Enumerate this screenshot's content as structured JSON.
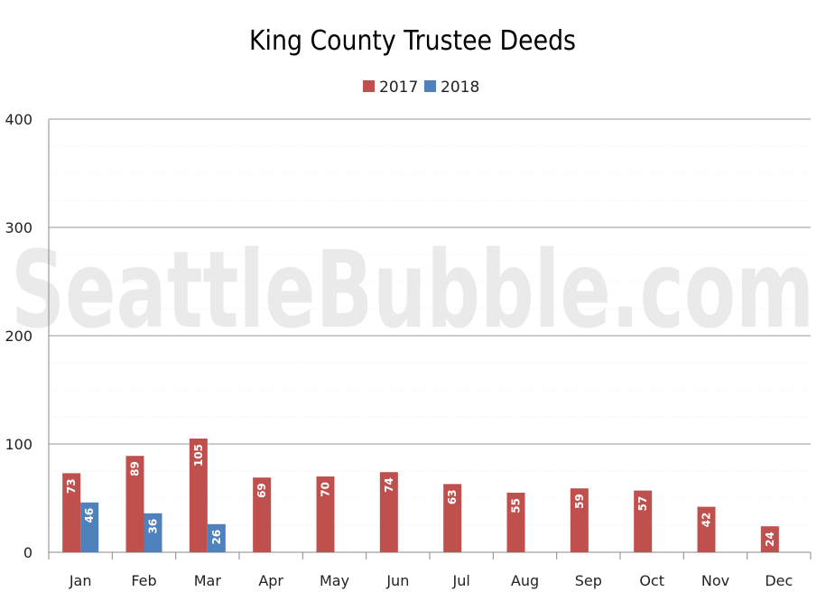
{
  "chart_data": {
    "type": "bar",
    "title": "King County Trustee Deeds",
    "categories": [
      "Jan",
      "Feb",
      "Mar",
      "Apr",
      "May",
      "Jun",
      "Jul",
      "Aug",
      "Sep",
      "Oct",
      "Nov",
      "Dec"
    ],
    "series": [
      {
        "name": "2017",
        "color": "#c0504d",
        "values": [
          73,
          89,
          105,
          69,
          70,
          74,
          63,
          55,
          59,
          57,
          42,
          24
        ]
      },
      {
        "name": "2018",
        "color": "#4f81bd",
        "values": [
          46,
          36,
          26,
          null,
          null,
          null,
          null,
          null,
          null,
          null,
          null,
          null
        ]
      }
    ],
    "ylim": [
      0,
      400
    ],
    "yticks": [
      0,
      100,
      200,
      300,
      400
    ],
    "minor_grid_step": 25,
    "legend_position": "top-center",
    "data_labels": "inside-end-rotated",
    "watermark": "SeattleBubble.com"
  }
}
